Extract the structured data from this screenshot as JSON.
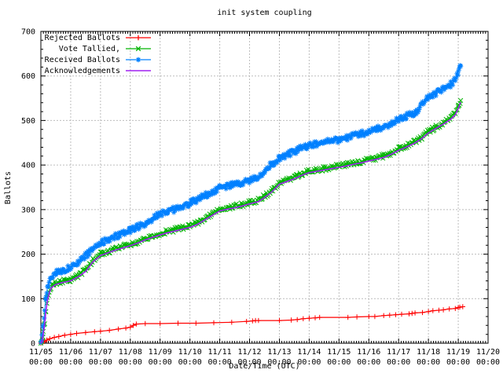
{
  "title": "init system coupling",
  "axes": {
    "x_label": "Date/Time (UTC)",
    "y_label": "Ballots"
  },
  "colors": {
    "background": "#ffffff",
    "border": "#000000",
    "grid": "#bdbdbd",
    "text": "#000000"
  },
  "chart_data": {
    "type": "line",
    "title": "init system coupling",
    "xlabel": "Date/Time (UTC)",
    "ylabel": "Ballots",
    "ylim": [
      0,
      700
    ],
    "xrange": [
      "11/05 00:00",
      "11/20 00:00"
    ],
    "grid": true,
    "legend_position": "top-left",
    "y_ticks": [
      "0",
      "100",
      "200",
      "300",
      "400",
      "500",
      "600",
      "700"
    ],
    "x_ticks": [
      {
        "date": "11/05",
        "time": "00:00"
      },
      {
        "date": "11/06",
        "time": "00:00"
      },
      {
        "date": "11/07",
        "time": "00:00"
      },
      {
        "date": "11/08",
        "time": "00:00"
      },
      {
        "date": "11/09",
        "time": "00:00"
      },
      {
        "date": "11/10",
        "time": "00:00"
      },
      {
        "date": "11/11",
        "time": "00:00"
      },
      {
        "date": "11/12",
        "time": "00:00"
      },
      {
        "date": "11/13",
        "time": "00:00"
      },
      {
        "date": "11/14",
        "time": "00:00"
      },
      {
        "date": "11/15",
        "time": "00:00"
      },
      {
        "date": "11/16",
        "time": "00:00"
      },
      {
        "date": "11/17",
        "time": "00:00"
      },
      {
        "date": "11/18",
        "time": "00:00"
      },
      {
        "date": "11/19",
        "time": "00:00"
      },
      {
        "date": "11/20",
        "time": "00:00"
      }
    ],
    "x_unit": "days since 11/05 00:00 UTC",
    "series": [
      {
        "name": "Rejected Ballots",
        "color": "#ff0000",
        "marker": "plus",
        "points": [
          [
            0,
            0
          ],
          [
            0.06,
            2
          ],
          [
            0.12,
            4
          ],
          [
            0.2,
            7
          ],
          [
            0.3,
            10
          ],
          [
            0.45,
            13
          ],
          [
            0.6,
            15
          ],
          [
            0.8,
            18
          ],
          [
            1,
            20
          ],
          [
            1.2,
            22
          ],
          [
            1.5,
            24
          ],
          [
            1.8,
            26
          ],
          [
            2,
            27
          ],
          [
            2.3,
            29
          ],
          [
            2.6,
            32
          ],
          [
            2.85,
            34
          ],
          [
            3,
            36
          ],
          [
            3.1,
            40
          ],
          [
            3.2,
            43
          ],
          [
            3.5,
            44
          ],
          [
            4,
            44
          ],
          [
            4.6,
            45
          ],
          [
            5.2,
            45
          ],
          [
            5.8,
            46
          ],
          [
            6.4,
            47
          ],
          [
            6.9,
            49
          ],
          [
            7.1,
            50
          ],
          [
            7.2,
            51
          ],
          [
            7.3,
            51
          ],
          [
            8,
            51
          ],
          [
            8.4,
            52
          ],
          [
            8.6,
            53
          ],
          [
            8.8,
            55
          ],
          [
            9,
            56
          ],
          [
            9.2,
            57
          ],
          [
            9.35,
            58
          ],
          [
            10.3,
            58
          ],
          [
            10.6,
            59
          ],
          [
            11,
            60
          ],
          [
            11.2,
            60
          ],
          [
            11.5,
            62
          ],
          [
            11.7,
            63
          ],
          [
            11.9,
            64
          ],
          [
            12.1,
            65
          ],
          [
            12.35,
            66
          ],
          [
            12.45,
            67
          ],
          [
            12.55,
            68
          ],
          [
            12.8,
            69
          ],
          [
            13,
            71
          ],
          [
            13.15,
            73
          ],
          [
            13.35,
            74
          ],
          [
            13.5,
            75
          ],
          [
            13.7,
            77
          ],
          [
            13.9,
            78
          ],
          [
            14,
            80
          ],
          [
            14.05,
            81
          ],
          [
            14.15,
            82
          ]
        ]
      },
      {
        "name": "Vote Tallied,",
        "color": "#00b400",
        "marker": "cross",
        "points": [
          [
            0,
            0
          ],
          [
            0.04,
            5
          ],
          [
            0.08,
            22
          ],
          [
            0.13,
            48
          ],
          [
            0.17,
            75
          ],
          [
            0.22,
            98
          ],
          [
            0.28,
            115
          ],
          [
            0.34,
            127
          ],
          [
            0.5,
            135
          ],
          [
            0.7,
            139
          ],
          [
            1,
            143
          ],
          [
            1.25,
            152
          ],
          [
            1.5,
            164
          ],
          [
            1.75,
            186
          ],
          [
            2,
            200
          ],
          [
            2.25,
            206
          ],
          [
            2.5,
            212
          ],
          [
            2.75,
            217
          ],
          [
            3,
            222
          ],
          [
            3.25,
            228
          ],
          [
            3.5,
            235
          ],
          [
            3.75,
            241
          ],
          [
            4,
            246
          ],
          [
            4.25,
            251
          ],
          [
            4.5,
            255
          ],
          [
            4.75,
            259
          ],
          [
            5,
            263
          ],
          [
            5.25,
            270
          ],
          [
            5.5,
            280
          ],
          [
            5.75,
            290
          ],
          [
            6,
            300
          ],
          [
            6.25,
            304
          ],
          [
            6.5,
            307
          ],
          [
            6.75,
            311
          ],
          [
            7,
            316
          ],
          [
            7.3,
            321
          ],
          [
            7.5,
            330
          ],
          [
            7.75,
            343
          ],
          [
            8,
            360
          ],
          [
            8.25,
            366
          ],
          [
            8.5,
            372
          ],
          [
            8.75,
            380
          ],
          [
            9,
            386
          ],
          [
            9.25,
            389
          ],
          [
            9.5,
            392
          ],
          [
            9.75,
            395
          ],
          [
            10,
            398
          ],
          [
            10.25,
            401
          ],
          [
            10.5,
            405
          ],
          [
            10.75,
            408
          ],
          [
            11,
            412
          ],
          [
            11.25,
            416
          ],
          [
            11.5,
            420
          ],
          [
            11.75,
            427
          ],
          [
            12,
            436
          ],
          [
            12.25,
            443
          ],
          [
            12.5,
            451
          ],
          [
            12.75,
            461
          ],
          [
            13,
            475
          ],
          [
            13.25,
            485
          ],
          [
            13.5,
            495
          ],
          [
            13.75,
            506
          ],
          [
            13.9,
            516
          ],
          [
            14,
            530
          ],
          [
            14.08,
            545
          ]
        ]
      },
      {
        "name": "Received Ballots",
        "color": "#0080ff",
        "marker": "asterisk",
        "points": [
          [
            0,
            0
          ],
          [
            0.04,
            15
          ],
          [
            0.08,
            40
          ],
          [
            0.13,
            72
          ],
          [
            0.17,
            100
          ],
          [
            0.22,
            122
          ],
          [
            0.28,
            138
          ],
          [
            0.34,
            150
          ],
          [
            0.5,
            158
          ],
          [
            0.7,
            164
          ],
          [
            1,
            170
          ],
          [
            1.25,
            180
          ],
          [
            1.5,
            196
          ],
          [
            1.75,
            213
          ],
          [
            2,
            225
          ],
          [
            2.25,
            233
          ],
          [
            2.5,
            240
          ],
          [
            2.75,
            246
          ],
          [
            3,
            253
          ],
          [
            3.25,
            261
          ],
          [
            3.5,
            268
          ],
          [
            3.75,
            280
          ],
          [
            4,
            290
          ],
          [
            4.25,
            296
          ],
          [
            4.5,
            301
          ],
          [
            4.75,
            308
          ],
          [
            5,
            315
          ],
          [
            5.25,
            322
          ],
          [
            5.5,
            331
          ],
          [
            5.75,
            340
          ],
          [
            6,
            348
          ],
          [
            6.25,
            353
          ],
          [
            6.5,
            356
          ],
          [
            6.75,
            361
          ],
          [
            7,
            366
          ],
          [
            7.3,
            371
          ],
          [
            7.45,
            380
          ],
          [
            7.6,
            397
          ],
          [
            7.8,
            403
          ],
          [
            8,
            415
          ],
          [
            8.25,
            424
          ],
          [
            8.5,
            430
          ],
          [
            8.75,
            438
          ],
          [
            9,
            444
          ],
          [
            9.25,
            448
          ],
          [
            9.5,
            451
          ],
          [
            9.75,
            454
          ],
          [
            10,
            457
          ],
          [
            10.25,
            461
          ],
          [
            10.5,
            466
          ],
          [
            10.75,
            470
          ],
          [
            11,
            475
          ],
          [
            11.25,
            480
          ],
          [
            11.5,
            486
          ],
          [
            11.75,
            493
          ],
          [
            12,
            503
          ],
          [
            12.25,
            510
          ],
          [
            12.5,
            516
          ],
          [
            12.65,
            522
          ],
          [
            12.8,
            540
          ],
          [
            13,
            553
          ],
          [
            13.25,
            562
          ],
          [
            13.5,
            572
          ],
          [
            13.75,
            581
          ],
          [
            13.9,
            592
          ],
          [
            14,
            610
          ],
          [
            14.08,
            622
          ]
        ]
      },
      {
        "name": "Acknowledgements",
        "color": "#a020f0",
        "marker": "none",
        "points": [
          [
            0,
            0
          ],
          [
            0.04,
            4
          ],
          [
            0.08,
            20
          ],
          [
            0.13,
            45
          ],
          [
            0.17,
            72
          ],
          [
            0.22,
            95
          ],
          [
            0.28,
            112
          ],
          [
            0.34,
            124
          ],
          [
            0.5,
            132
          ],
          [
            0.7,
            136
          ],
          [
            1,
            140
          ],
          [
            1.25,
            149
          ],
          [
            1.5,
            161
          ],
          [
            1.75,
            183
          ],
          [
            2,
            197
          ],
          [
            2.25,
            203
          ],
          [
            2.5,
            209
          ],
          [
            2.75,
            214
          ],
          [
            3,
            219
          ],
          [
            3.25,
            225
          ],
          [
            3.5,
            232
          ],
          [
            3.75,
            238
          ],
          [
            4,
            243
          ],
          [
            4.25,
            248
          ],
          [
            4.5,
            252
          ],
          [
            4.75,
            256
          ],
          [
            5,
            260
          ],
          [
            5.25,
            267
          ],
          [
            5.5,
            277
          ],
          [
            5.75,
            287
          ],
          [
            6,
            297
          ],
          [
            6.25,
            301
          ],
          [
            6.5,
            304
          ],
          [
            6.75,
            308
          ],
          [
            7,
            313
          ],
          [
            7.3,
            318
          ],
          [
            7.5,
            327
          ],
          [
            7.75,
            340
          ],
          [
            8,
            357
          ],
          [
            8.25,
            363
          ],
          [
            8.5,
            369
          ],
          [
            8.75,
            377
          ],
          [
            9,
            383
          ],
          [
            9.25,
            386
          ],
          [
            9.5,
            389
          ],
          [
            9.75,
            392
          ],
          [
            10,
            395
          ],
          [
            10.25,
            398
          ],
          [
            10.5,
            402
          ],
          [
            10.75,
            405
          ],
          [
            11,
            409
          ],
          [
            11.25,
            413
          ],
          [
            11.5,
            417
          ],
          [
            11.75,
            424
          ],
          [
            12,
            433
          ],
          [
            12.25,
            440
          ],
          [
            12.5,
            448
          ],
          [
            12.75,
            458
          ],
          [
            13,
            472
          ],
          [
            13.25,
            482
          ],
          [
            13.5,
            492
          ],
          [
            13.75,
            503
          ],
          [
            13.9,
            513
          ],
          [
            14,
            527
          ],
          [
            14.08,
            541
          ]
        ]
      }
    ]
  }
}
